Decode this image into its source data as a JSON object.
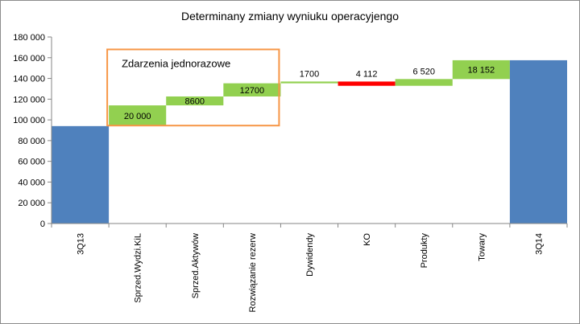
{
  "chart_data": {
    "type": "bar",
    "subtype": "waterfall",
    "title": "Determinany zmiany wyniuku operacyjengo",
    "xlabel": "",
    "ylabel": "",
    "ylim": [
      0,
      180000
    ],
    "yticks": [
      0,
      20000,
      40000,
      60000,
      80000,
      100000,
      120000,
      140000,
      160000,
      180000
    ],
    "ytick_labels": [
      "0",
      "20 000",
      "40 000",
      "60 000",
      "80 000",
      "100 000",
      "120 000",
      "140 000",
      "160 000",
      "180 000"
    ],
    "grid": false,
    "legend": "none",
    "categories": [
      "3Q13",
      "Sprzed.Wydzi.KiL",
      "Sprzed.Aktywów",
      "Rozwiązanie rezerw",
      "Dywidendy",
      "KO",
      "Produkty",
      "Towary",
      "3Q14"
    ],
    "bars": [
      {
        "kind": "total",
        "start": 0,
        "end": 94000,
        "label": ""
      },
      {
        "kind": "increase",
        "start": 94000,
        "end": 114000,
        "label": "20 000"
      },
      {
        "kind": "increase",
        "start": 114000,
        "end": 122600,
        "label": "8600"
      },
      {
        "kind": "increase",
        "start": 122600,
        "end": 135300,
        "label": "12700"
      },
      {
        "kind": "increase",
        "start": 135300,
        "end": 137000,
        "label": "1700"
      },
      {
        "kind": "decrease",
        "start": 137000,
        "end": 132888,
        "label": "4 112"
      },
      {
        "kind": "increase",
        "start": 132888,
        "end": 139408,
        "label": "6 520"
      },
      {
        "kind": "increase",
        "start": 139408,
        "end": 157560,
        "label": "18 152"
      },
      {
        "kind": "total",
        "start": 0,
        "end": 157560,
        "label": ""
      }
    ],
    "colors": {
      "total": "#4f81bd",
      "increase": "#92d050",
      "decrease": "#ff0000",
      "decrease_label": "#ff0000",
      "annotation_border": "#f79646",
      "axis": "#868686"
    },
    "annotation": {
      "text": "Zdarzenia jednorazowe",
      "from_category": 1,
      "to_category": 3,
      "y_top": 168000,
      "y_bottom": 94500
    }
  }
}
